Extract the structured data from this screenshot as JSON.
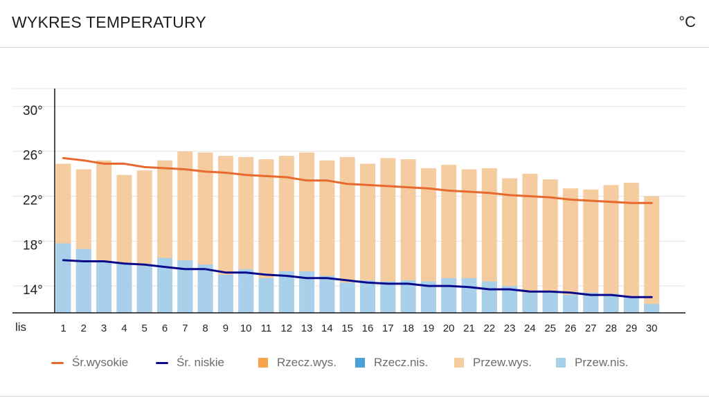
{
  "header": {
    "title": "WYKRES TEMPERATURY",
    "unit": "°C"
  },
  "legend": [
    {
      "label": "Śr.wysokie",
      "kind": "line",
      "color": "#e8692e"
    },
    {
      "label": "Śr. niskie",
      "kind": "line",
      "color": "#0a0a8c"
    },
    {
      "label": "Rzecz.wys.",
      "kind": "box",
      "color": "#f5a34f"
    },
    {
      "label": "Rzecz.nis.",
      "kind": "box",
      "color": "#4a9fd8"
    },
    {
      "label": "Przew.wys.",
      "kind": "box",
      "color": "#f5cba0"
    },
    {
      "label": "Przew.nis.",
      "kind": "box",
      "color": "#a8d0ea"
    }
  ],
  "chart_data": {
    "type": "bar",
    "xlabel": "lis",
    "categories": [
      "1",
      "2",
      "3",
      "4",
      "5",
      "6",
      "7",
      "8",
      "9",
      "10",
      "11",
      "12",
      "13",
      "14",
      "15",
      "16",
      "17",
      "18",
      "19",
      "20",
      "21",
      "22",
      "23",
      "24",
      "25",
      "26",
      "27",
      "28",
      "29",
      "30"
    ],
    "yticks": [
      14,
      18,
      22,
      26,
      30
    ],
    "ytick_labels": [
      "14°",
      "18°",
      "22°",
      "26°",
      "30°"
    ],
    "ylim": [
      11.6,
      31.6
    ],
    "grid": true,
    "series": [
      {
        "name": "Przew.wys.",
        "kind": "bar",
        "color": "#f5cba0",
        "values": [
          24.9,
          24.4,
          25.2,
          23.9,
          24.3,
          25.2,
          26.0,
          25.9,
          25.6,
          25.5,
          25.3,
          25.6,
          25.9,
          25.2,
          25.5,
          24.9,
          25.4,
          25.3,
          24.5,
          24.8,
          24.4,
          24.5,
          23.6,
          24.0,
          23.5,
          22.7,
          22.6,
          23.0,
          23.2,
          22.0
        ],
        "value_labels": []
      },
      {
        "name": "Przew.nis.",
        "kind": "bar",
        "color": "#a8d0ea",
        "values": [
          17.8,
          17.3,
          16.2,
          16.0,
          15.8,
          16.5,
          16.3,
          15.9,
          15.0,
          15.5,
          14.7,
          15.3,
          15.3,
          14.9,
          14.3,
          14.5,
          14.4,
          14.5,
          14.4,
          14.7,
          14.7,
          14.4,
          14.0,
          13.4,
          13.5,
          13.2,
          13.4,
          13.3,
          13.0,
          12.4
        ],
        "value_labels": []
      },
      {
        "name": "Śr.wysokie",
        "kind": "line",
        "color": "#e8692e",
        "values": [
          25.4,
          25.2,
          24.9,
          24.9,
          24.6,
          24.5,
          24.4,
          24.2,
          24.1,
          23.9,
          23.8,
          23.7,
          23.4,
          23.4,
          23.1,
          23.0,
          22.9,
          22.8,
          22.7,
          22.5,
          22.4,
          22.3,
          22.1,
          22.0,
          21.9,
          21.7,
          21.6,
          21.5,
          21.4,
          21.4
        ],
        "value_labels": []
      },
      {
        "name": "Śr. niskie",
        "kind": "line",
        "color": "#0a0a8c",
        "values": [
          16.3,
          16.2,
          16.2,
          16.0,
          15.9,
          15.7,
          15.5,
          15.5,
          15.2,
          15.2,
          15.0,
          14.9,
          14.7,
          14.7,
          14.5,
          14.3,
          14.2,
          14.2,
          14.0,
          14.0,
          13.9,
          13.7,
          13.7,
          13.5,
          13.5,
          13.4,
          13.2,
          13.2,
          13.0,
          13.0
        ],
        "value_labels": []
      }
    ]
  }
}
